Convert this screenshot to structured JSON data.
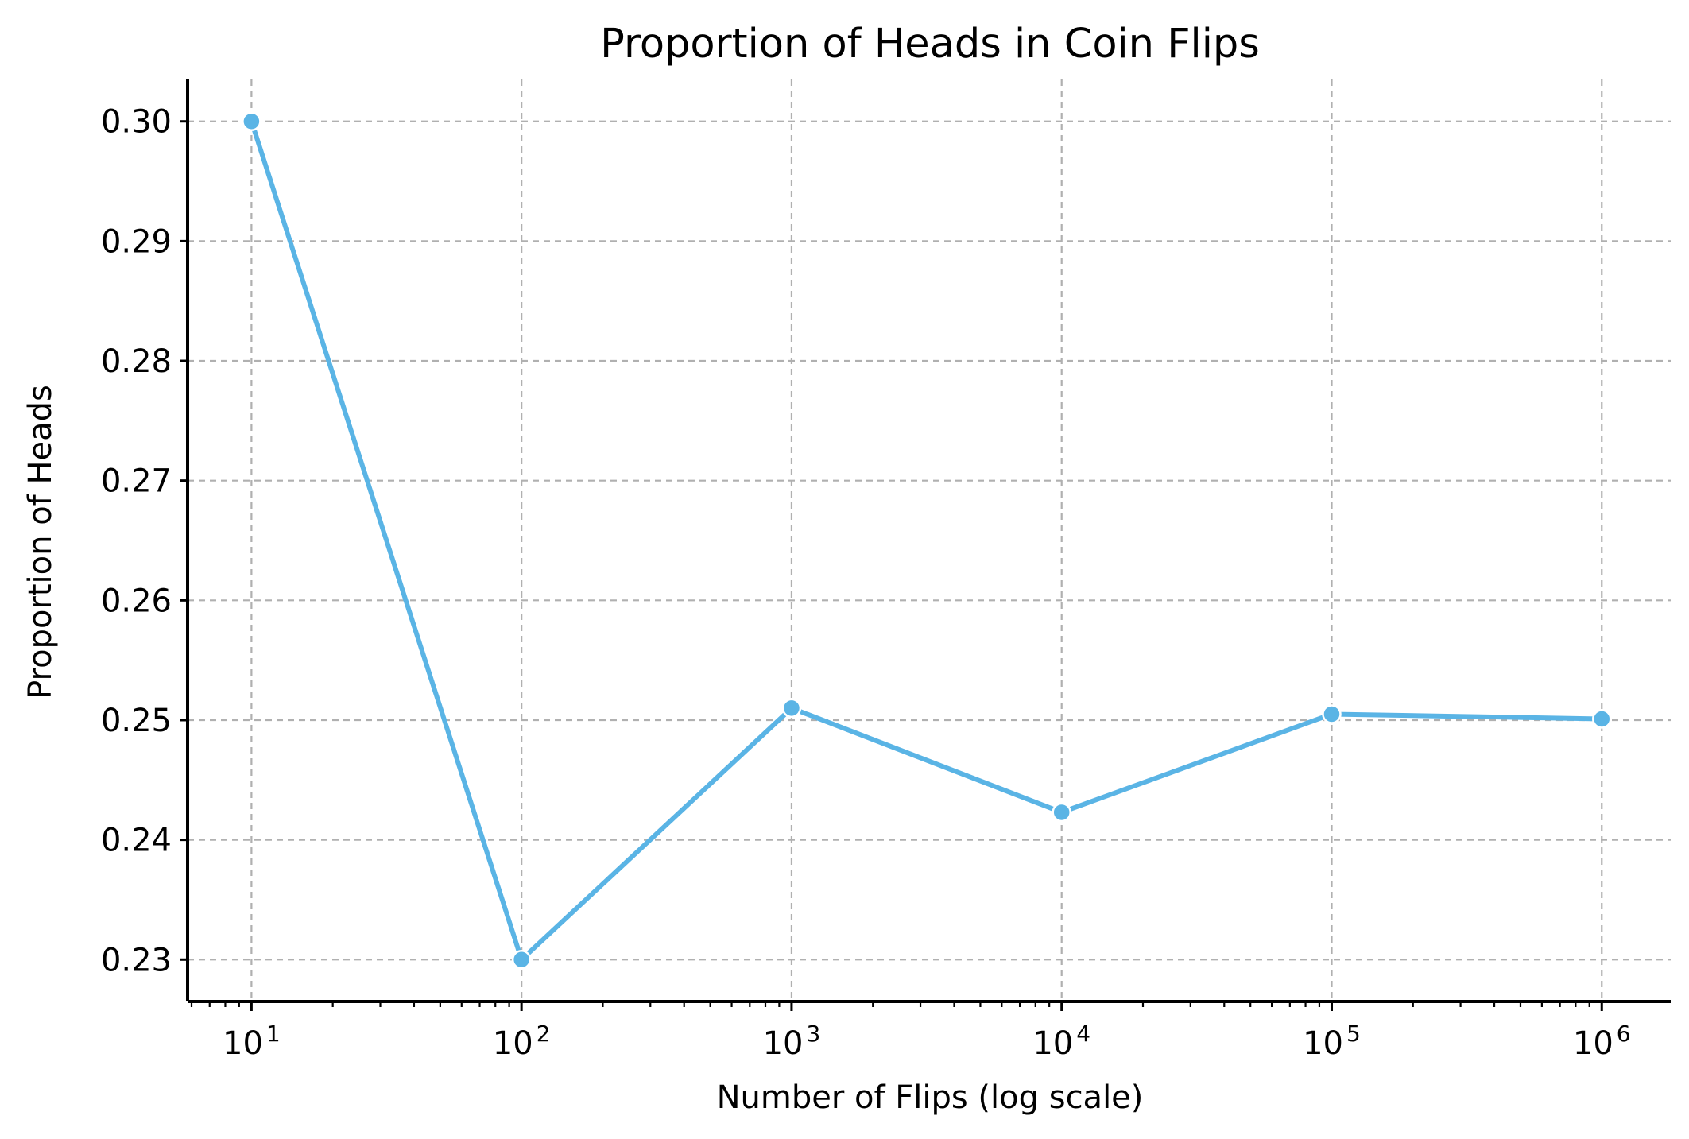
{
  "chart_data": {
    "type": "line",
    "title": "Proportion of Heads in Coin Flips",
    "xlabel": "Number of Flips (log scale)",
    "ylabel": "Proportion of Heads",
    "xscale": "log",
    "xlim": [
      5.8,
      1800000
    ],
    "ylim": [
      0.2265,
      0.3035
    ],
    "grid": true,
    "grid_style": "dashed",
    "x": [
      10,
      100,
      1000,
      10000,
      100000,
      1000000
    ],
    "y": [
      0.3,
      0.23,
      0.251,
      0.2423,
      0.2505,
      0.2501
    ],
    "x_ticks": [
      {
        "base": "10",
        "exp": "1",
        "value": 10
      },
      {
        "base": "10",
        "exp": "2",
        "value": 100
      },
      {
        "base": "10",
        "exp": "3",
        "value": 1000
      },
      {
        "base": "10",
        "exp": "4",
        "value": 10000
      },
      {
        "base": "10",
        "exp": "5",
        "value": 100000
      },
      {
        "base": "10",
        "exp": "6",
        "value": 1000000
      }
    ],
    "y_ticks": [
      "0.23",
      "0.24",
      "0.25",
      "0.26",
      "0.27",
      "0.28",
      "0.29",
      "0.30"
    ],
    "series_color": "#5ab4e5",
    "marker_edge_color": "#ffffff"
  }
}
